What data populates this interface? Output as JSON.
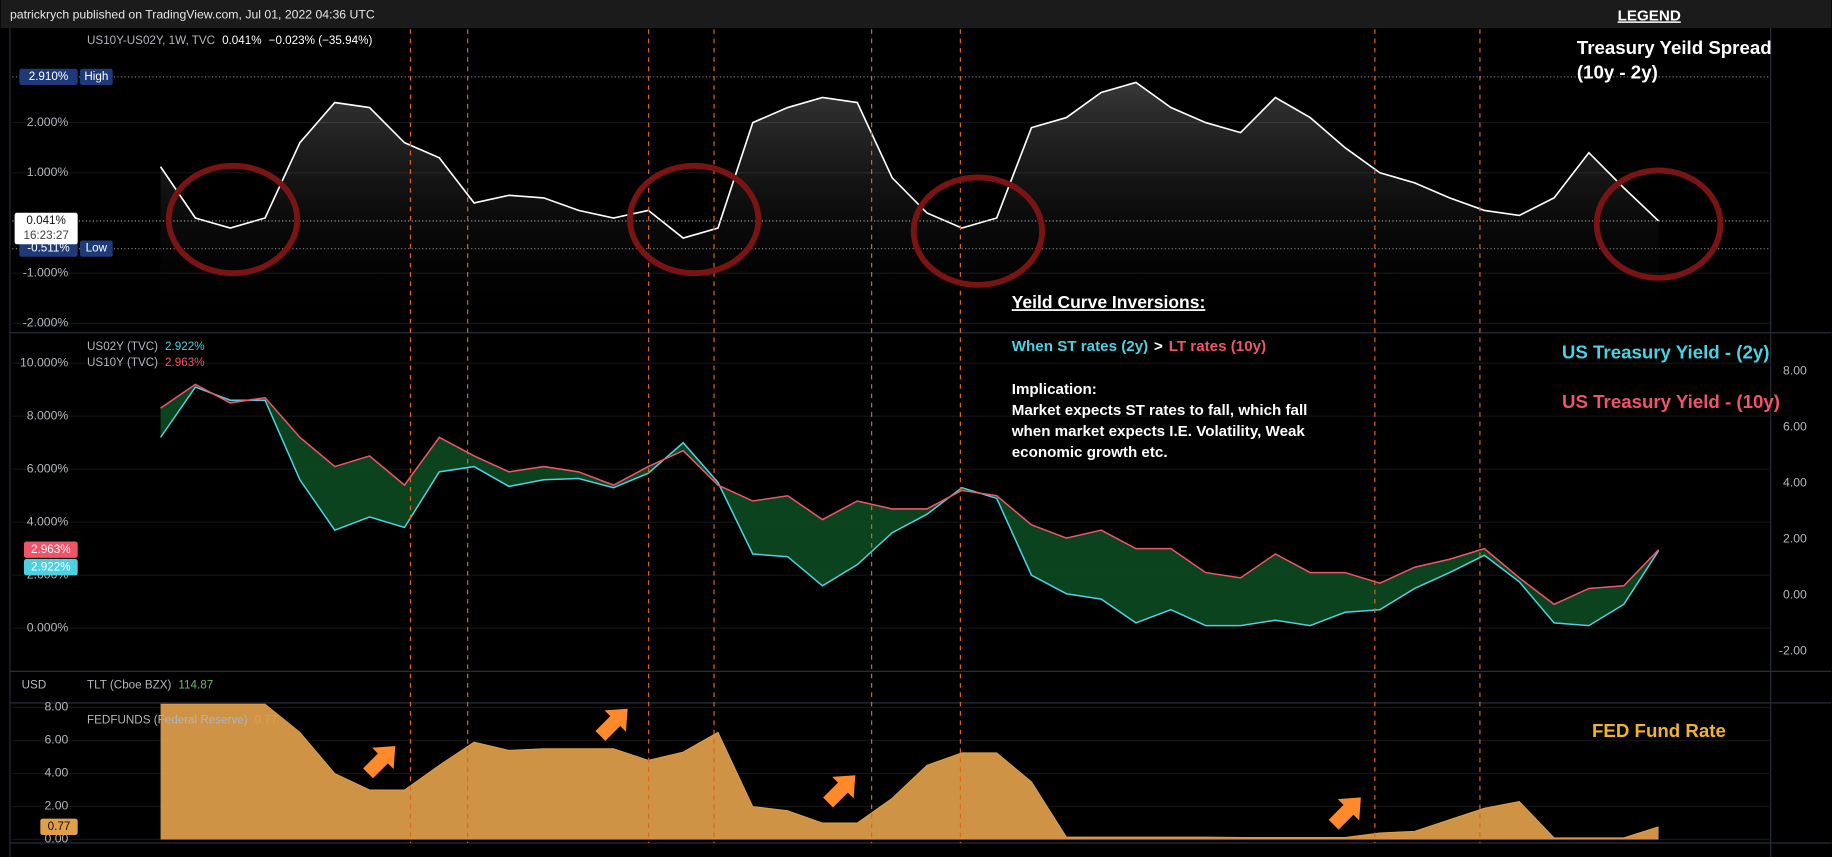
{
  "header": "patrickrych published on TradingView.com, Jul 01, 2022 04:36 UTC",
  "legend_title": "LEGEND",
  "usd_label": "USD",
  "tlt_pane": {
    "symbol": "TLT (Cboe BZX)",
    "last": "114.87"
  },
  "notes": {
    "spread_title": "Treasury Yeild Spread",
    "spread_sub": "(10y - 2y)",
    "inversions": "Yeild Curve Inversions:",
    "when": "When ST rates (2y)",
    "gt": ">",
    "lt": "LT rates (10y)",
    "implication": "Implication:",
    "lines": [
      "Market expects ST rates to fall, which fall",
      "when market expects I.E. Volatility, Weak",
      "economic growth etc."
    ],
    "label_2y": "US Treasury Yield - (2y)",
    "label_10y": "US Treasury Yield - (10y)",
    "label_fed": "FED Fund Rate"
  },
  "chart_data": [
    {
      "type": "area",
      "fill": "gradient",
      "color": "#ffffff",
      "grid": true,
      "legend": {
        "symbol": "US10Y-US02Y, 1W, TVC",
        "last": "0.041%",
        "change": "−0.023% (−35.94%)"
      },
      "values": [
        1.12,
        0.1,
        -0.1,
        0.1,
        1.6,
        2.4,
        2.3,
        1.6,
        1.3,
        0.4,
        0.55,
        0.5,
        0.25,
        0.1,
        0.25,
        -0.3,
        -0.1,
        2.0,
        2.3,
        2.5,
        2.4,
        0.9,
        0.2,
        -0.1,
        0.1,
        1.9,
        2.1,
        2.6,
        2.8,
        2.3,
        2.0,
        1.8,
        2.5,
        2.1,
        1.5,
        1.0,
        0.8,
        0.5,
        0.25,
        0.15,
        0.5,
        1.4,
        0.7,
        0.041
      ],
      "ylim": [
        -2.14,
        3.86
      ],
      "yticks": [
        {
          "value": 2,
          "label": "2.000%"
        },
        {
          "value": 1,
          "label": "1.000%"
        },
        {
          "value": -1,
          "label": "-1.000%"
        },
        {
          "value": -2,
          "label": "-2.000%"
        }
      ],
      "high": {
        "value": 2.91,
        "label": "2.910%",
        "name": "High"
      },
      "low": {
        "value": -0.511,
        "label": "-0.511%",
        "name": "Low"
      },
      "last_tag": {
        "time": "16:23:27"
      }
    },
    {
      "type": "line",
      "grid": true,
      "band_color": "#0c4a22",
      "series": [
        {
          "name": "US02Y (TVC)",
          "color": "#4dd0e1",
          "last_label": "2.922%",
          "values": [
            7.2,
            9.1,
            8.6,
            8.6,
            5.6,
            3.7,
            4.2,
            3.8,
            5.9,
            6.1,
            5.35,
            5.6,
            5.65,
            5.3,
            5.85,
            7.0,
            5.5,
            2.8,
            2.7,
            1.6,
            2.4,
            3.6,
            4.3,
            5.3,
            4.9,
            2.0,
            1.3,
            1.1,
            0.2,
            0.7,
            0.1,
            0.1,
            0.3,
            0.1,
            0.6,
            0.7,
            1.5,
            2.1,
            2.75,
            1.75,
            0.2,
            0.1,
            0.9,
            2.922
          ]
        },
        {
          "name": "US10Y (TVC)",
          "color": "#f05468",
          "last_label": "2.963%",
          "values": [
            8.3,
            9.2,
            8.5,
            8.7,
            7.2,
            6.1,
            6.5,
            5.4,
            7.2,
            6.5,
            5.9,
            6.1,
            5.9,
            5.4,
            6.1,
            6.7,
            5.4,
            4.8,
            5.0,
            4.1,
            4.8,
            4.5,
            4.5,
            5.2,
            5.0,
            3.9,
            3.4,
            3.7,
            3.0,
            3.0,
            2.1,
            1.9,
            2.8,
            2.1,
            2.1,
            1.7,
            2.3,
            2.6,
            3.0,
            1.9,
            0.9,
            1.5,
            1.6,
            2.963
          ]
        }
      ],
      "ylim": [
        -1.54,
        11.06
      ],
      "yticks": [
        {
          "value": 0,
          "label": "0.000%"
        },
        {
          "value": 2,
          "label": "2.000%"
        },
        {
          "value": 4,
          "label": "4.000%"
        },
        {
          "value": 6,
          "label": "6.000%"
        },
        {
          "value": 8,
          "label": "8.000%"
        },
        {
          "value": 10,
          "label": "10.000%"
        }
      ],
      "y2lim": [
        -2.63,
        9.29
      ],
      "y2ticks": [
        {
          "value": -2,
          "label": "-2.00"
        },
        {
          "value": 0,
          "label": "0.00"
        },
        {
          "value": 2,
          "label": "2.00"
        },
        {
          "value": 4,
          "label": "4.00"
        },
        {
          "value": 6,
          "label": "6.00"
        },
        {
          "value": 8,
          "label": "8.00"
        }
      ]
    },
    {
      "type": "area",
      "fill": "solid",
      "color": "#e0a04a",
      "grid": true,
      "legend": {
        "symbol": "FEDFUNDS (Federal Reserve)",
        "last": "0.77"
      },
      "values": [
        8.2,
        8.2,
        8.2,
        8.2,
        6.5,
        4.0,
        3.0,
        3.0,
        4.5,
        5.9,
        5.4,
        5.5,
        5.5,
        5.5,
        4.8,
        5.3,
        6.5,
        2.0,
        1.75,
        1.0,
        1.0,
        2.5,
        4.5,
        5.25,
        5.25,
        3.5,
        0.15,
        0.15,
        0.15,
        0.15,
        0.15,
        0.12,
        0.12,
        0.12,
        0.12,
        0.4,
        0.5,
        1.2,
        1.9,
        2.3,
        0.1,
        0.1,
        0.1,
        0.77
      ],
      "ylim": [
        -0.14,
        8.21
      ],
      "yticks": [
        {
          "value": 0,
          "label": "0.00"
        },
        {
          "value": 2,
          "label": "2.00"
        },
        {
          "value": 4,
          "label": "4.00"
        },
        {
          "value": 6,
          "label": "6.00"
        },
        {
          "value": 8,
          "label": "8.00"
        }
      ]
    }
  ]
}
